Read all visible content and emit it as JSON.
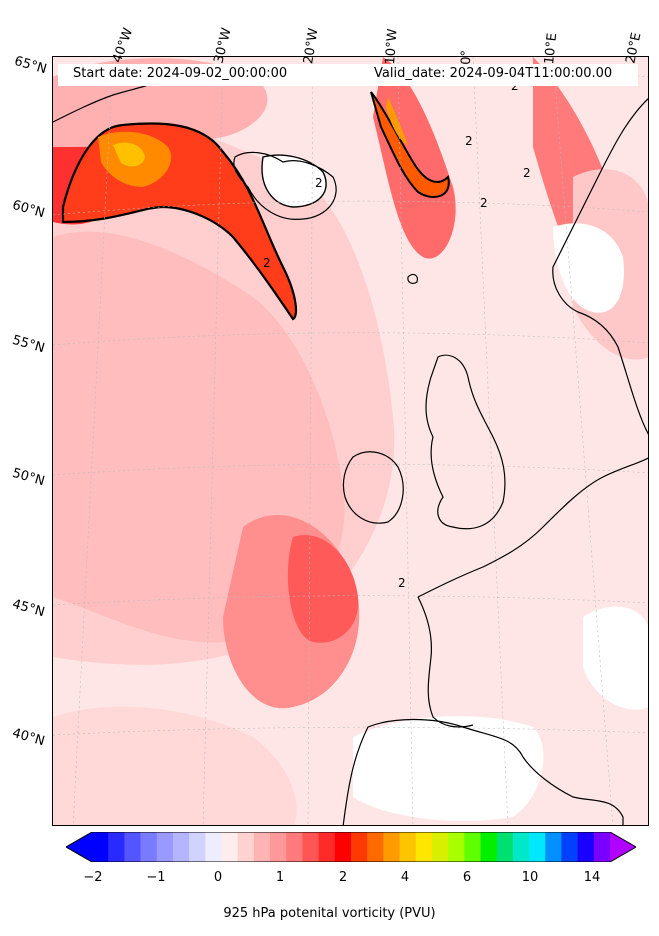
{
  "header": {
    "start_date": "Start date: 2024-09-02_00:00:00",
    "valid_date": "Valid_date: 2024-09-04T11:00:00.00"
  },
  "longitude_labels": [
    "40°W",
    "30°W",
    "20°W",
    "10°W",
    "0°",
    "10°E",
    "20°E"
  ],
  "latitude_labels": [
    "65°N",
    "60°N",
    "55°N",
    "50°N",
    "45°N",
    "40°N"
  ],
  "contour_label": "2",
  "colorbar": {
    "label": "925 hPa potenital vorticity (PVU)",
    "ticks": [
      "−2",
      "−1",
      "0",
      "1",
      "2",
      "4",
      "6",
      "10",
      "14"
    ],
    "colors": [
      "#0000ff",
      "#2a2aff",
      "#5555ff",
      "#7a7aff",
      "#9999ff",
      "#b4b4ff",
      "#d2d2ff",
      "#ededff",
      "#ffeded",
      "#ffd2d2",
      "#ffb4b4",
      "#ff9999",
      "#ff7a7a",
      "#ff5555",
      "#ff2a2a",
      "#ff0000",
      "#ff3a00",
      "#ff6a00",
      "#ff9a00",
      "#ffc400",
      "#ffe600",
      "#d8f000",
      "#a8ff00",
      "#5fff00",
      "#00f000",
      "#00e070",
      "#00e8c8",
      "#00e8ff",
      "#0090ff",
      "#0040ff",
      "#1a00ff",
      "#7a00ff"
    ],
    "under_color": "#0000ff",
    "over_color": "#b000ff"
  }
}
